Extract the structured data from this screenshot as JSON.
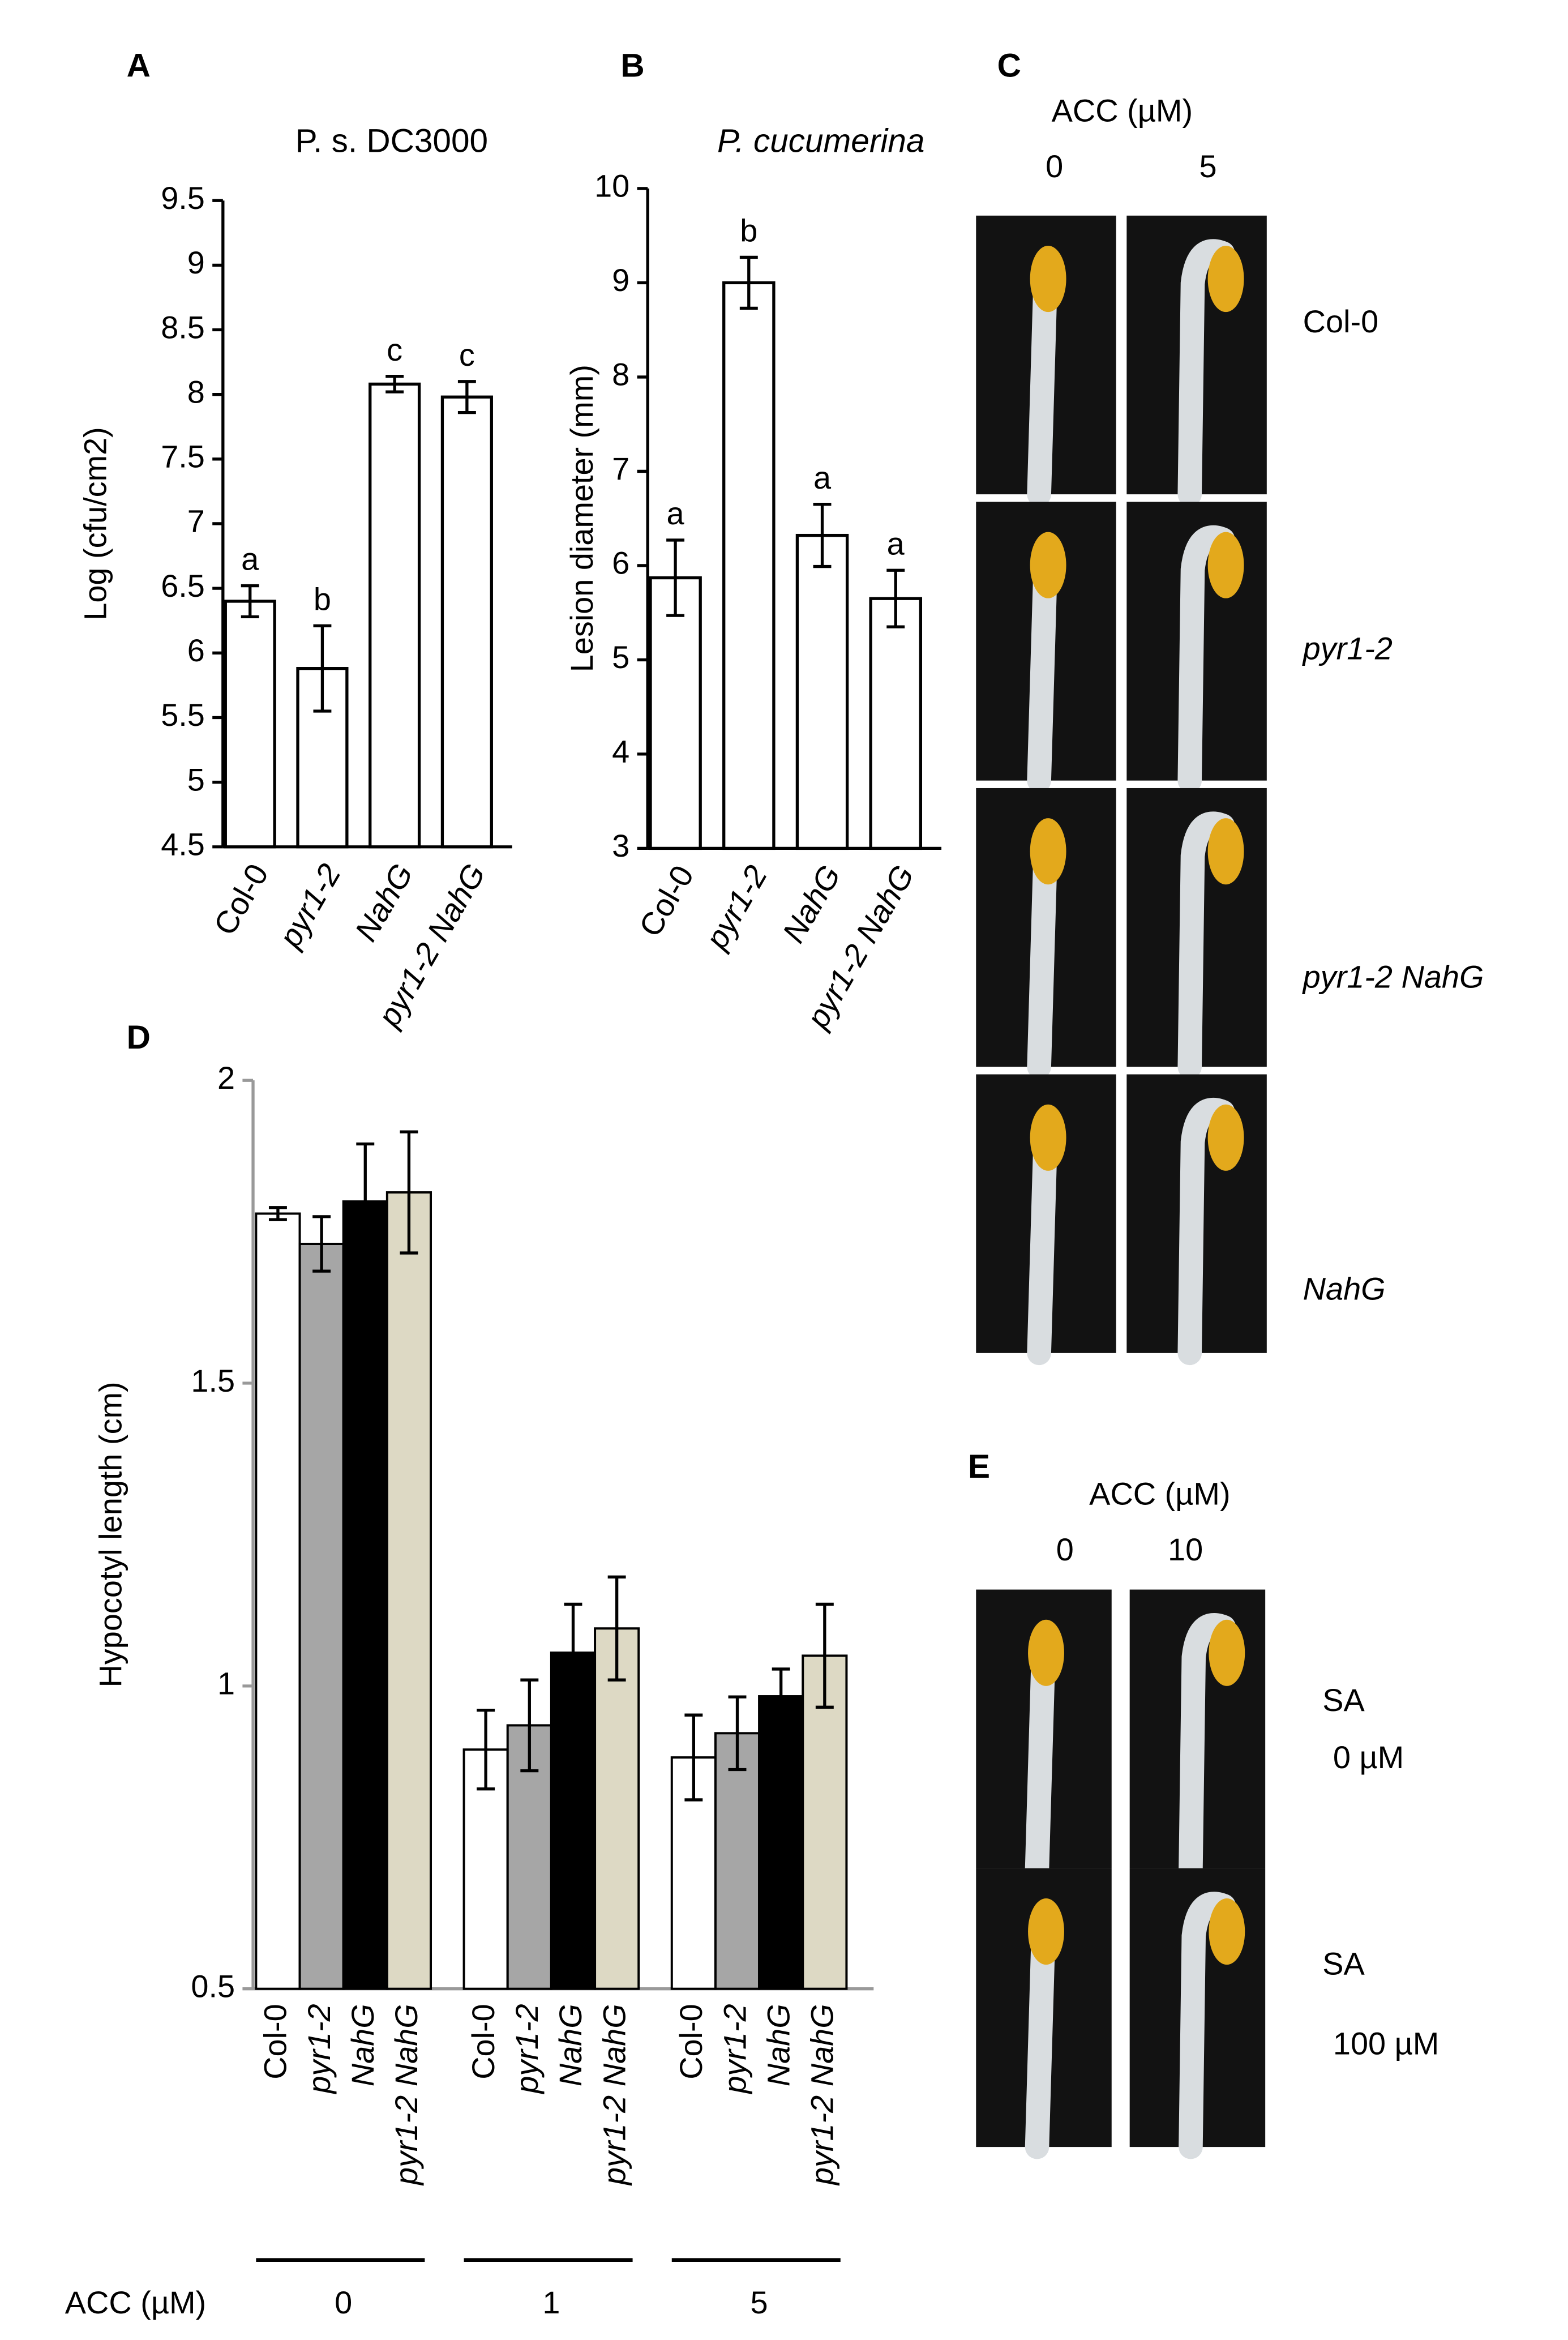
{
  "chart_data": [
    {
      "type": "bar",
      "panel": "A",
      "title": "P. s. DC3000",
      "ylabel": "Log (cfu/cm2)",
      "categories": [
        "Col-0",
        "pyr1-2",
        "NahG",
        "pyr1-2 NahG"
      ],
      "values": [
        6.4,
        5.88,
        8.08,
        7.98
      ],
      "errors": [
        0.12,
        0.33,
        0.06,
        0.12
      ],
      "value_labels": [
        "a",
        "b",
        "c",
        "c"
      ],
      "color": "#ffffff",
      "ylim": [
        4.5,
        9.5
      ],
      "yticks": [
        4.5,
        5,
        5.5,
        6,
        6.5,
        7,
        7.5,
        8,
        8.5,
        9,
        9.5
      ]
    },
    {
      "type": "bar",
      "panel": "B",
      "title": "P. cucumerina",
      "ylabel": "Lesion diameter  (mm)",
      "categories": [
        "Col-0",
        "pyr1-2",
        "NahG",
        "pyr1-2 NahG"
      ],
      "values": [
        5.87,
        9.0,
        6.32,
        5.65
      ],
      "errors": [
        0.4,
        0.27,
        0.33,
        0.3
      ],
      "value_labels": [
        "a",
        "b",
        "a",
        "a"
      ],
      "color": "#ffffff",
      "ylim": [
        3,
        10
      ],
      "yticks": [
        3,
        4,
        5,
        6,
        7,
        8,
        9,
        10
      ]
    },
    {
      "type": "grouped_bar",
      "panel": "D",
      "ylabel": "Hypocotyl length (cm)",
      "xlabel": "ACC (µM)",
      "categories": [
        "0",
        "1",
        "5"
      ],
      "series": [
        {
          "name": "Col-0",
          "color": "#ffffff",
          "values": [
            1.78,
            0.895,
            0.882
          ],
          "errors": [
            0.01,
            0.065,
            0.07
          ]
        },
        {
          "name": "pyr1-2",
          "color": "#a6a6a6",
          "values": [
            1.73,
            0.935,
            0.922
          ],
          "errors": [
            0.045,
            0.075,
            0.06
          ]
        },
        {
          "name": "NahG",
          "color": "#000000",
          "values": [
            1.8,
            1.055,
            0.983
          ],
          "errors": [
            0.095,
            0.08,
            0.045
          ]
        },
        {
          "name": "pyr1-2 NahG",
          "color": "#ddd9c4",
          "values": [
            1.815,
            1.095,
            1.05
          ],
          "errors": [
            0.1,
            0.085,
            0.085
          ]
        }
      ],
      "ylim": [
        0.5,
        2
      ],
      "yticks": [
        0.5,
        1,
        1.5,
        2
      ]
    }
  ],
  "photos": [
    {
      "panel": "C",
      "header": "ACC (µM)",
      "columns": [
        "0",
        "5"
      ],
      "rows": [
        "Col-0",
        "pyr1-2",
        "pyr1-2 NahG",
        "NahG"
      ]
    },
    {
      "panel": "E",
      "header": "ACC (µM)",
      "columns": [
        "0",
        "10"
      ],
      "rows": [
        "SA",
        "0 µM",
        "SA",
        "100 µM"
      ]
    }
  ]
}
